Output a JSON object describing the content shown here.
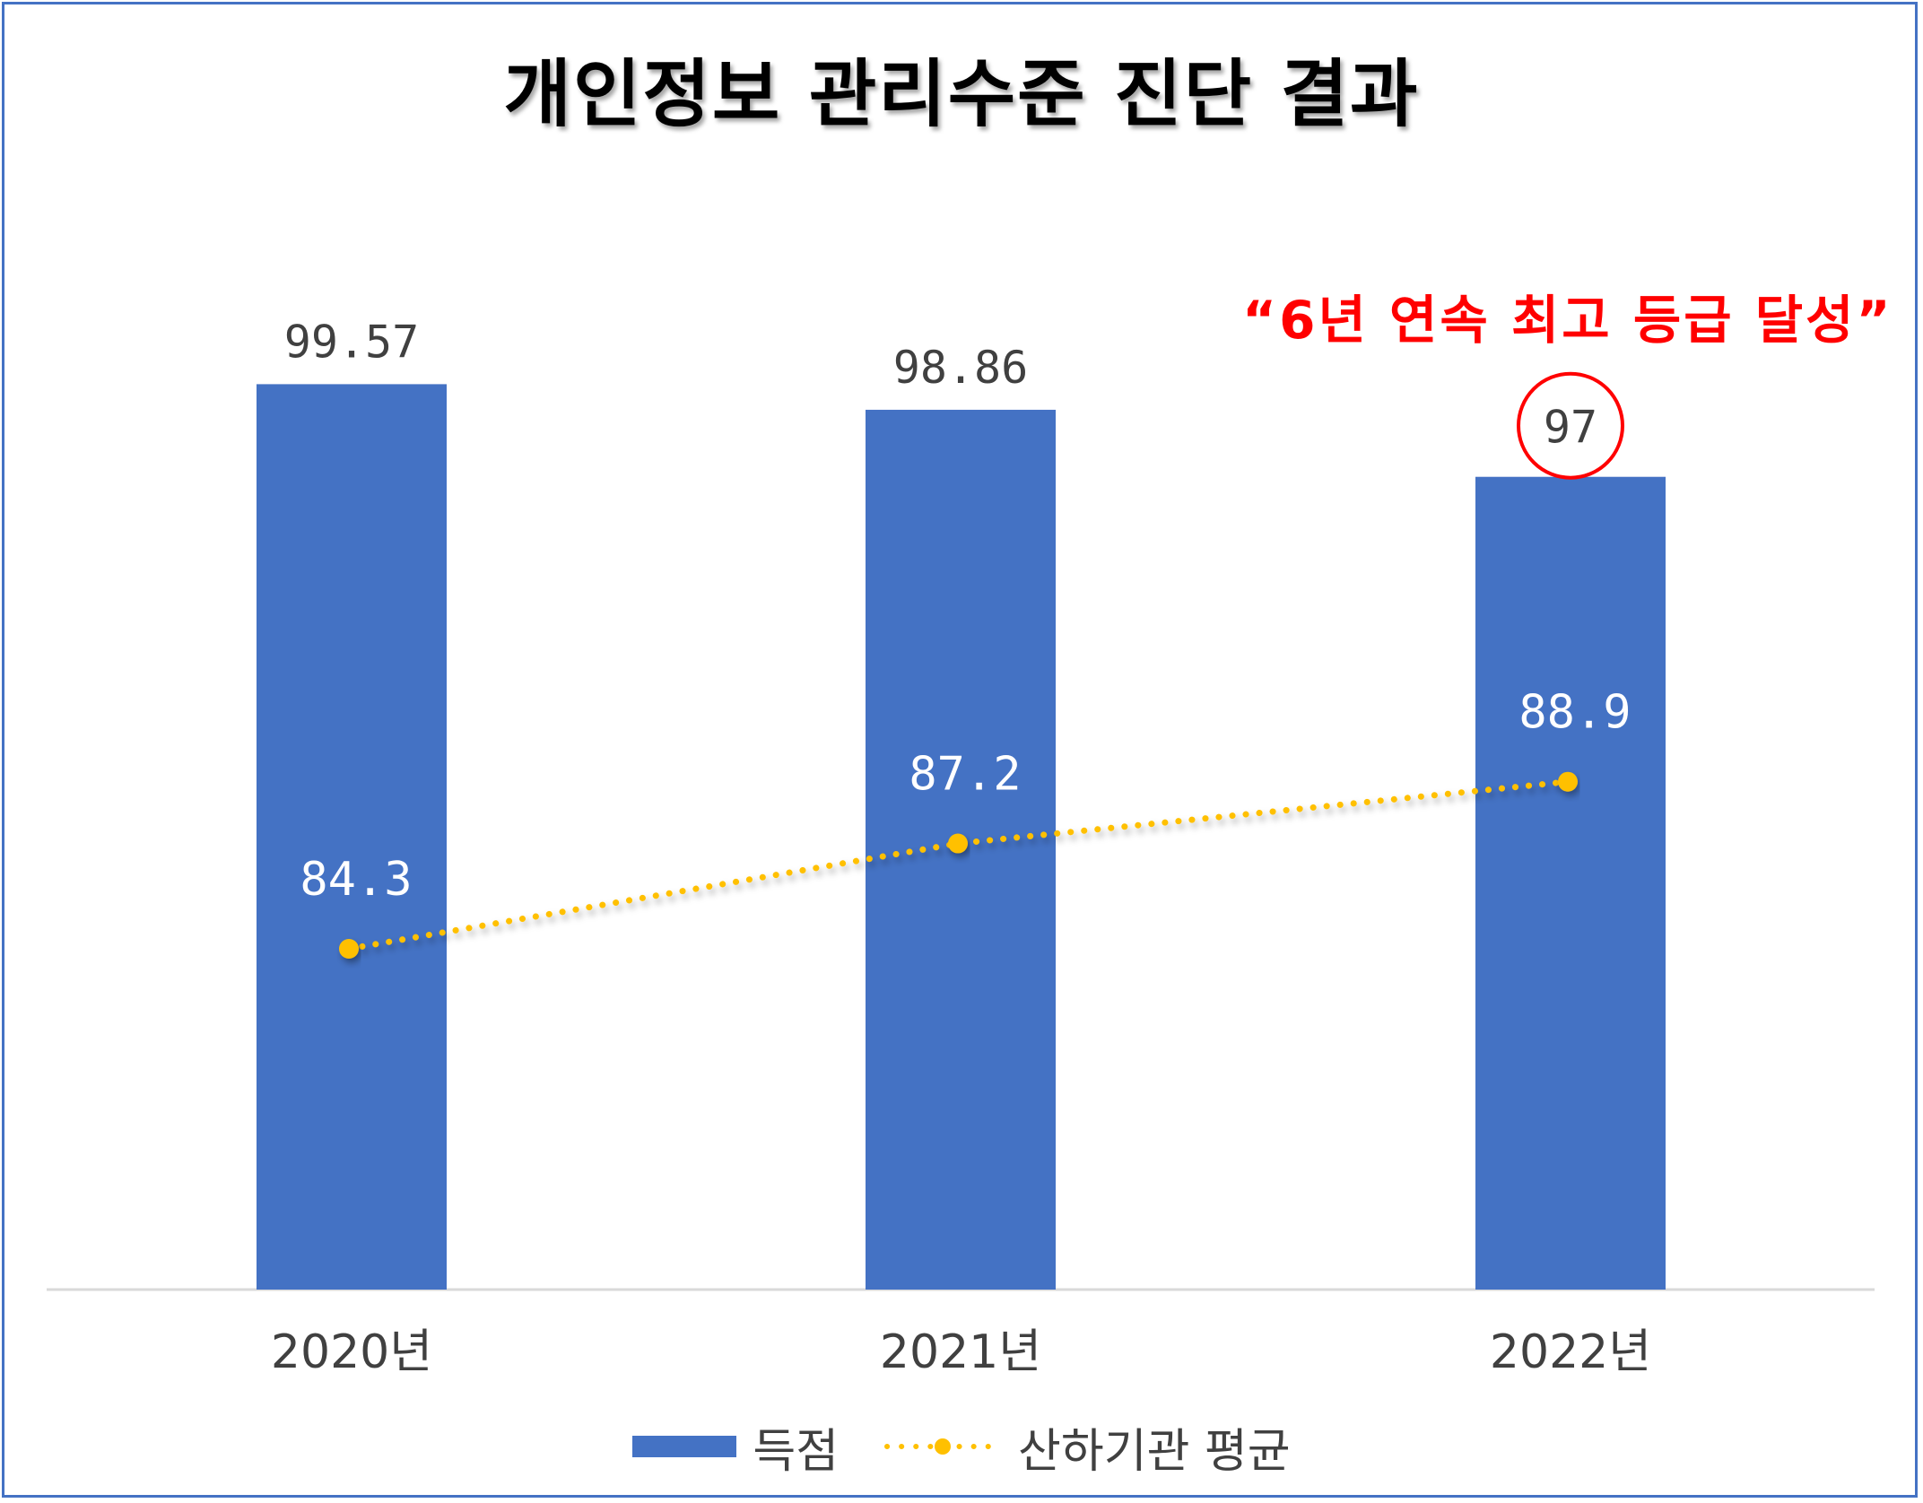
{
  "title": "개인정보 관리수준 진단 결과",
  "annotation": "“6년 연속 최고 등급 달성”",
  "colors": {
    "bar": "#4472C4",
    "line": "#FFC000",
    "annotation": "#FF0000",
    "frame": "#4472C4",
    "highlight_circle": "#FF0000"
  },
  "legend": {
    "bar_label": "득점",
    "line_label": "산하기관 평균"
  },
  "chart_data": {
    "type": "bar",
    "title": "개인정보 관리수준 진단 결과",
    "categories": [
      "2020년",
      "2021년",
      "2022년"
    ],
    "series": [
      {
        "name": "득점",
        "type": "bar",
        "values": [
          99.57,
          98.86,
          97
        ],
        "labels": [
          "99.57",
          "98.86",
          "97"
        ]
      },
      {
        "name": "산하기관 평균",
        "type": "line",
        "style": "dotted",
        "values": [
          84.3,
          87.2,
          88.9
        ],
        "labels": [
          "84.3",
          "87.2",
          "88.9"
        ]
      }
    ],
    "highlighted_label": "97",
    "grid": false,
    "legend_position": "bottom"
  }
}
